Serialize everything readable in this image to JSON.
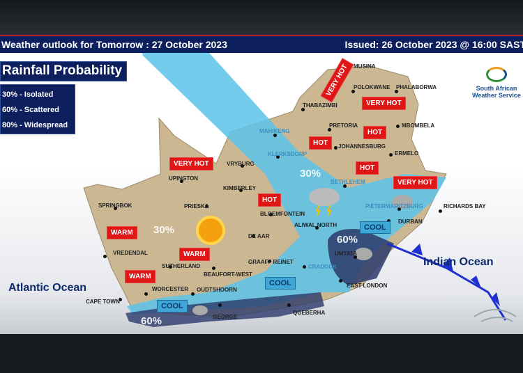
{
  "header": {
    "title": "Weather outlook for Tomorrow : 27 October 2023",
    "issued": "Issued: 26 October 2023 @ 16:00   SAST"
  },
  "legend": {
    "title": "Rainfall Probability",
    "items": [
      "30% - Isolated",
      "60% - Scattered",
      "80% - Widespread"
    ]
  },
  "logo": {
    "line1": "South African",
    "line2": "Weather Service"
  },
  "oceans": {
    "atlantic": "Atlantic Ocean",
    "indian": "Indian Ocean"
  },
  "cities": [
    "MUSINA",
    "POLOKWANE",
    "PHALABORWA",
    "THABAZIMBI",
    "PRETORIA",
    "MBOMBELA",
    "MAHIKENG",
    "JOHANNESBURG",
    "ERMELO",
    "KLERKSDORP",
    "VRYBURG",
    "BETHLEHEM",
    "UPINGTON",
    "KIMBERLEY",
    "SPRINGBOK",
    "PRIESKA",
    "BLOEMFONTEIN",
    "PIETERMARITZBURG",
    "RICHARDS BAY",
    "DURBAN",
    "ALIWAL NORTH",
    "DE AAR",
    "VREDENDAL",
    "UMTATA",
    "GRAAFF REINET",
    "SUTHERLAND",
    "CRADOCK",
    "BEAUFORT-WEST",
    "WORCESTER",
    "OUDTSHOORN",
    "EAST LONDON",
    "CAPE TOWN",
    "GEORGE",
    "QGEBERHA"
  ],
  "temperature_tags": [
    "VERY HOT",
    "VERY HOT",
    "HOT",
    "HOT",
    "HOT",
    "VERY HOT",
    "VERY HOT",
    "HOT",
    "WARM",
    "WARM",
    "WARM"
  ],
  "cool_tags": [
    "COOL",
    "COOL",
    "COOL"
  ],
  "rain_probabilities": [
    "30%",
    "30%",
    "60%",
    "60%"
  ],
  "colors": {
    "header": "#0d1f5c",
    "hot": "#e01515",
    "rain30": "#5cc3ea",
    "rain60": "#2c3a6b",
    "land": "#cbb892",
    "front": "#1f2fd0"
  },
  "icons": [
    "sun-icon",
    "thunderstorm-icon",
    "rain-cloud-icon",
    "cold-front-icon"
  ]
}
